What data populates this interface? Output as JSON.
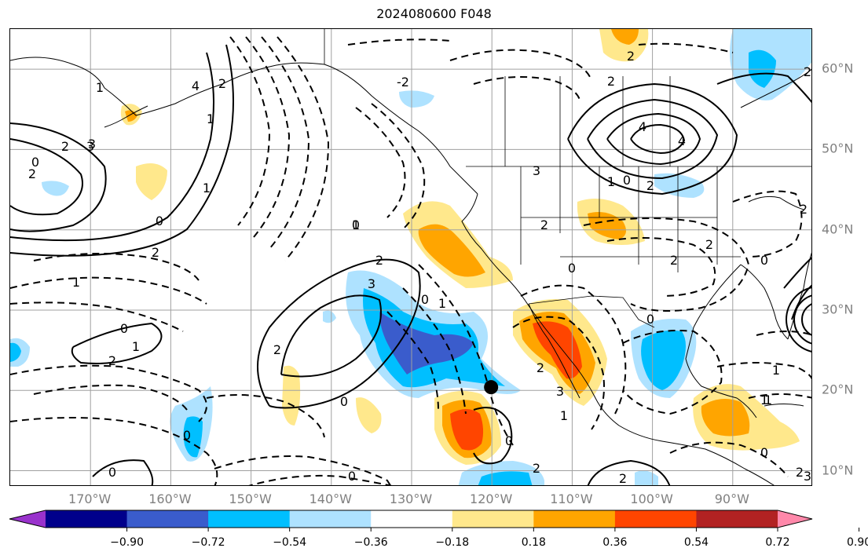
{
  "title": "2024080600 F048",
  "map": {
    "lon_labels": [
      "170°W",
      "160°W",
      "150°W",
      "140°W",
      "130°W",
      "120°W",
      "110°W",
      "100°W",
      "90°W"
    ],
    "lat_labels": [
      "60°N",
      "50°N",
      "40°N",
      "30°N",
      "20°N",
      "10°N"
    ],
    "lon_range": [
      -180,
      -80
    ],
    "lat_range": [
      8,
      65
    ],
    "marker": {
      "lon": -120.1,
      "lat": 20.4,
      "shape": "filled-circle"
    }
  },
  "contour_labels": {
    "positive": [
      "4",
      "3",
      "2",
      "1",
      "1",
      "2",
      "3",
      "4",
      "4",
      "2",
      "3",
      "2",
      "1",
      "2",
      "1",
      "2",
      "2",
      "1",
      "1",
      "2",
      "3",
      "1",
      "2"
    ],
    "negative": [
      "-2"
    ],
    "zero": [
      "0",
      "0",
      "0",
      "0",
      "0",
      "0",
      "0",
      "0",
      "0",
      "0",
      "0",
      "0",
      "0",
      "0",
      "0"
    ],
    "dashed": [
      "2",
      "3",
      "2",
      "1",
      "1",
      "2",
      "1",
      "2",
      "3",
      "2",
      "1",
      "2",
      "2",
      "2",
      "1",
      "1",
      "2",
      "2"
    ]
  },
  "colorbar": {
    "tick_labels": [
      "−0.90",
      "−0.72",
      "−0.54",
      "−0.36",
      "−0.18",
      "0.18",
      "0.36",
      "0.54",
      "0.72",
      "0.90"
    ],
    "colors": [
      "#9932cc",
      "#00008b",
      "#3a5ccc",
      "#00bfff",
      "#aee2ff",
      "#ffffff",
      "#ffe88c",
      "#ffa500",
      "#ff4500",
      "#b22222",
      "#ff88aa"
    ],
    "extend": "both"
  },
  "shading_colors": {
    "neg_strong": "#3a5ccc",
    "neg_mid": "#00bfff",
    "neg_weak": "#aee2ff",
    "pos_weak": "#ffe88c",
    "pos_mid": "#ffa500",
    "pos_strong": "#ff4500",
    "pos_deep": "#b22222"
  }
}
